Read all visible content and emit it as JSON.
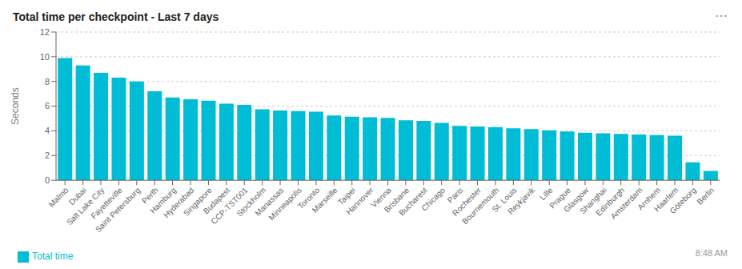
{
  "chart_data": {
    "type": "bar",
    "title": "Total time per checkpoint - Last 7 days",
    "ylabel": "Seconds",
    "categories": [
      "Malmö",
      "Dubai",
      "Salt Lake City",
      "Fayetteville",
      "Saint Petersburg",
      "Perth",
      "Hamburg",
      "Hyderabad",
      "Singapore",
      "Budapest",
      "CCP-TST001",
      "Stockholm",
      "Manassas",
      "Minneapolis",
      "Toronto",
      "Marseille",
      "Taipei",
      "Hannover",
      "Vienna",
      "Brisbane",
      "Bucharest",
      "Chicago",
      "Paris",
      "Rochester",
      "Bournemouth",
      "St. Louis",
      "Reykjavik",
      "Lille",
      "Prague",
      "Glasgow",
      "Shanghai",
      "Edinburgh",
      "Amsterdam",
      "Arnhem",
      "Haarlem",
      "Göteborg",
      "Berlin"
    ],
    "series": [
      {
        "name": "Total time",
        "color": "#00bcd4",
        "values": [
          9.9,
          9.3,
          8.7,
          8.3,
          8.0,
          7.2,
          6.7,
          6.55,
          6.45,
          6.2,
          6.1,
          5.75,
          5.65,
          5.6,
          5.55,
          5.25,
          5.15,
          5.1,
          5.05,
          4.85,
          4.8,
          4.65,
          4.4,
          4.35,
          4.3,
          4.2,
          4.15,
          4.05,
          3.95,
          3.85,
          3.8,
          3.75,
          3.7,
          3.65,
          3.6,
          1.45,
          0.75
        ]
      }
    ],
    "ylim": [
      0,
      12
    ],
    "yticks": [
      0,
      2,
      4,
      6,
      8,
      10,
      12
    ],
    "grid": true,
    "legend": "lower left",
    "annotations": [
      "⋯",
      "8:48 AM"
    ]
  }
}
